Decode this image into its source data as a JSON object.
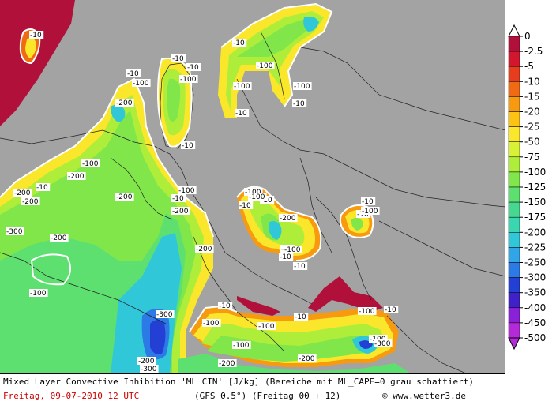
{
  "title": "Mixed Layer Convective Inhibition 'ML CIN' [J/kg] (Bereiche mit ML_CAPE=0 grau schattiert)",
  "date": "Freitag, 09-07-2010  12 UTC",
  "model": "(GFS 0.5°)  (Freitag 00 + 12)",
  "copyright": "© www.wetter3.de",
  "legend": {
    "labels": [
      "0",
      "-2.5",
      "-5",
      "-10",
      "-15",
      "-20",
      "-25",
      "-50",
      "-75",
      "-100",
      "-125",
      "-150",
      "-175",
      "-200",
      "-225",
      "-250",
      "-300",
      "-350",
      "-400",
      "-450",
      "-500"
    ],
    "colors": [
      "#b0103a",
      "#d2162e",
      "#e83c1e",
      "#f06a14",
      "#f79a10",
      "#fcc315",
      "#fae62a",
      "#d8f036",
      "#aeee3a",
      "#80e64a",
      "#5ee070",
      "#46d890",
      "#3ad6b0",
      "#30c8d8",
      "#30a6e8",
      "#2c7ae6",
      "#2440d4",
      "#4020c8",
      "#8a20d8",
      "#b42ad8"
    ]
  },
  "colors": {
    "background_grey": "#a3a3a3",
    "red": "#b0103a",
    "orange": "#f79a10",
    "yellow": "#fae62a",
    "lime": "#aeee3a",
    "green": "#80e64a",
    "teal": "#5ee070",
    "cyan": "#30c8d8",
    "blue": "#2c7ae6",
    "navy": "#2440d4"
  },
  "contour_labels": [
    "-10",
    "-10",
    "-10",
    "-10",
    "-100",
    "-100",
    "-200",
    "-100",
    "-10",
    "-10",
    "-10",
    "-100",
    "-100",
    "-10",
    "-100",
    "-100",
    "-10",
    "-100",
    "-200",
    "-200",
    "-200",
    "-10",
    "-200",
    "-300",
    "-200",
    "-200",
    "-100",
    "-10",
    "-100",
    "-200",
    "-10",
    "-10",
    "-200",
    "-100",
    "-10",
    "-10",
    "-10",
    "-100",
    "-300",
    "-200",
    "-300",
    "-100",
    "-100",
    "-10",
    "-200",
    "-100",
    "-10",
    "-100",
    "-200",
    "-300",
    "-10",
    "-100",
    "-10"
  ]
}
